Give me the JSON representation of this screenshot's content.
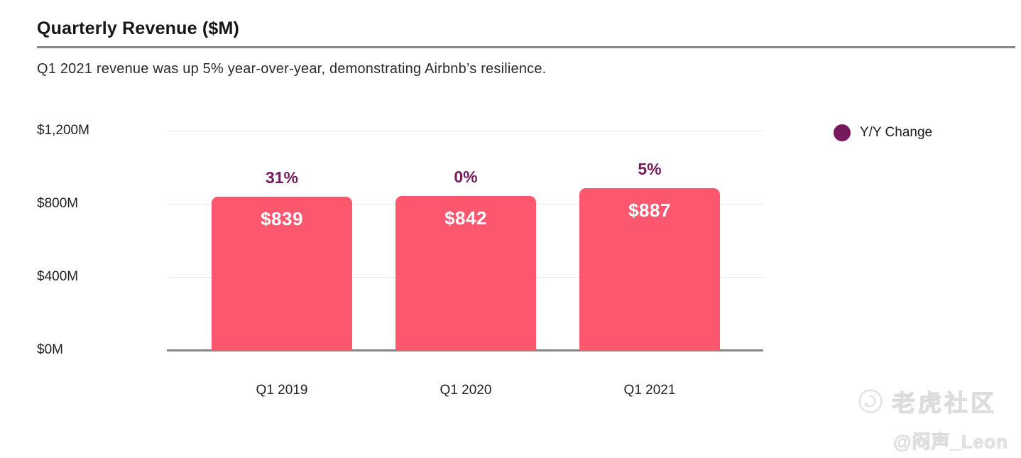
{
  "header": {
    "title": "Quarterly Revenue ($M)",
    "subtitle": "Q1 2021 revenue was up 5% year-over-year, demonstrating Airbnb’s resilience."
  },
  "legend": {
    "label": "Y/Y Change",
    "dot_color": "#77195C"
  },
  "colors": {
    "bar": "#FB5870",
    "accent_purple": "#731C5B",
    "value_text": "#FFFFFF",
    "gridline": "#E8E8E8",
    "axis_line": "#85858A"
  },
  "chart_data": {
    "type": "bar",
    "title": "Quarterly Revenue ($M)",
    "subtitle": "Q1 2021 revenue was up 5% year-over-year, demonstrating Airbnb’s resilience.",
    "categories": [
      "Q1 2019",
      "Q1 2020",
      "Q1 2021"
    ],
    "series": [
      {
        "name": "Revenue ($M)",
        "values": [
          839,
          842,
          887
        ],
        "labels": [
          "$839",
          "$842",
          "$887"
        ]
      },
      {
        "name": "Y/Y Change",
        "values": [
          31,
          0,
          5
        ],
        "labels": [
          "31%",
          "0%",
          "5%"
        ]
      }
    ],
    "xlabel": "",
    "ylabel": "Revenue ($M)",
    "ylim": [
      0,
      1200
    ],
    "yticks": [
      {
        "value": 0,
        "label": "$0M"
      },
      {
        "value": 400,
        "label": "$400M"
      },
      {
        "value": 800,
        "label": "$800M"
      },
      {
        "value": 1200,
        "label": "$1,200M"
      }
    ],
    "grid": true,
    "legend_position": "top-right"
  },
  "watermark": {
    "brand": "老虎社区",
    "username": "@闷声_Leon"
  }
}
